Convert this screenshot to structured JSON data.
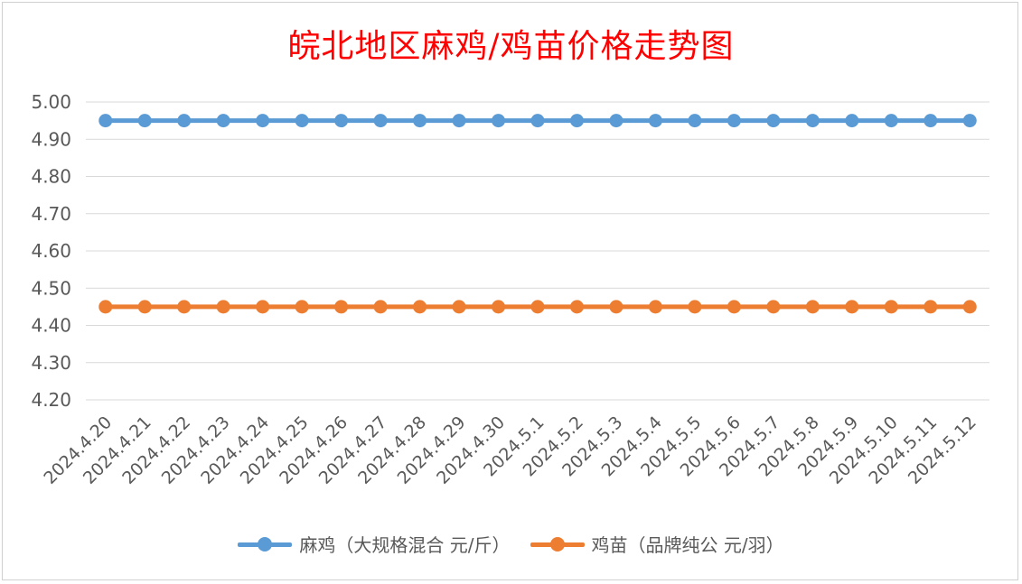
{
  "chart_data": {
    "type": "line",
    "title": "皖北地区麻鸡/鸡苗价格走势图",
    "categories": [
      "2024.4.20",
      "2024.4.21",
      "2024.4.22",
      "2024.4.23",
      "2024.4.24",
      "2024.4.25",
      "2024.4.26",
      "2024.4.27",
      "2024.4.28",
      "2024.4.29",
      "2024.4.30",
      "2024.5.1",
      "2024.5.2",
      "2024.5.3",
      "2024.5.4",
      "2024.5.5",
      "2024.5.6",
      "2024.5.7",
      "2024.5.8",
      "2024.5.9",
      "2024.5.10",
      "2024.5.11",
      "2024.5.12"
    ],
    "series": [
      {
        "name": "麻鸡（大规格混合 元/斤）",
        "color": "#5b9bd5",
        "values": [
          4.95,
          4.95,
          4.95,
          4.95,
          4.95,
          4.95,
          4.95,
          4.95,
          4.95,
          4.95,
          4.95,
          4.95,
          4.95,
          4.95,
          4.95,
          4.95,
          4.95,
          4.95,
          4.95,
          4.95,
          4.95,
          4.95,
          4.95
        ]
      },
      {
        "name": "鸡苗（品牌纯公 元/羽）",
        "color": "#ed7d31",
        "values": [
          4.45,
          4.45,
          4.45,
          4.45,
          4.45,
          4.45,
          4.45,
          4.45,
          4.45,
          4.45,
          4.45,
          4.45,
          4.45,
          4.45,
          4.45,
          4.45,
          4.45,
          4.45,
          4.45,
          4.45,
          4.45,
          4.45,
          4.45
        ]
      }
    ],
    "ylim": [
      4.2,
      5.0
    ],
    "yticks": [
      "4.20",
      "4.30",
      "4.40",
      "4.50",
      "4.60",
      "4.70",
      "4.80",
      "4.90",
      "5.00"
    ],
    "xlabel": "",
    "ylabel": "",
    "grid": true,
    "legend_position": "bottom",
    "title_color": "#ff0000"
  }
}
